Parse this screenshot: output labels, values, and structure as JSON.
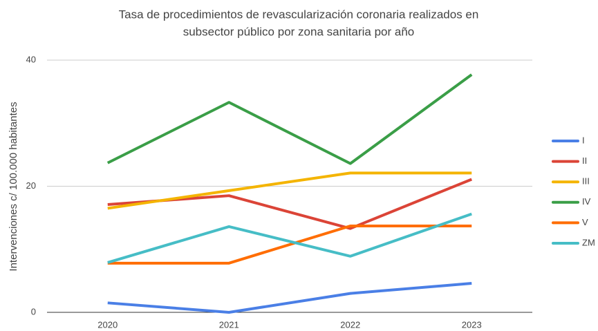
{
  "chart_data": {
    "type": "line",
    "title": [
      "Tasa de procedimientos de revascularización coronaria realizados en",
      "subsector público por zona sanitaria por año"
    ],
    "y_label": "Intervenciones c/ 100.000 habitantes",
    "categories": [
      "2020",
      "2021",
      "2022",
      "2023"
    ],
    "series": [
      {
        "name": "I",
        "color": "#4a7fe6",
        "values": [
          1.5,
          0,
          3.0,
          4.6
        ]
      },
      {
        "name": "II",
        "color": "#db4437",
        "values": [
          17.1,
          18.5,
          13.3,
          21.1
        ]
      },
      {
        "name": "III",
        "color": "#f4b400",
        "values": [
          16.5,
          19.3,
          22.1,
          22.1
        ]
      },
      {
        "name": "IV",
        "color": "#3a9e47",
        "values": [
          23.7,
          33.3,
          23.6,
          37.7
        ]
      },
      {
        "name": "V",
        "color": "#ff6d01",
        "values": [
          7.8,
          7.8,
          13.7,
          13.7
        ]
      },
      {
        "name": "ZM",
        "color": "#46bdc6",
        "values": [
          7.9,
          13.6,
          8.9,
          15.6
        ]
      }
    ],
    "ylim": [
      0,
      40
    ],
    "yticks": [
      0,
      20,
      40
    ],
    "grid": true,
    "legend": "right"
  }
}
